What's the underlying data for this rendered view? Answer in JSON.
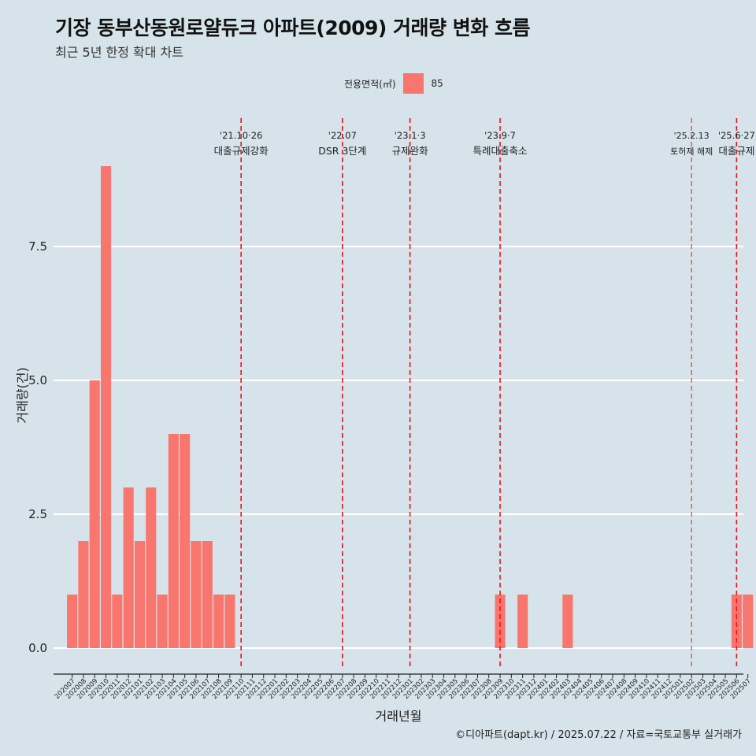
{
  "header": {
    "title": "기장 동부산동원로얄듀크 아파트(2009) 거래량 변화 흐름",
    "subtitle": "최근 5년 한정 확대 차트"
  },
  "legend": {
    "title": "전용면적(㎡)",
    "items": [
      {
        "label": "85",
        "color": "#f8766d"
      }
    ]
  },
  "caption": "©디아파트(dapt.kr) / 2025.07.22 / 자료=국토교통부 실거래가",
  "chart_data": {
    "type": "bar",
    "xlabel": "거래년월",
    "ylabel": "거래량(건)",
    "ylim": [
      -0.35,
      9.4
    ],
    "yticks": [
      0.0,
      2.5,
      5.0,
      7.5
    ],
    "ytick_labels": [
      "0.0",
      "2.5",
      "5.0",
      "7.5"
    ],
    "grid": "horizontal",
    "legend_position": "top",
    "bar_color": "#f8766d",
    "categories": [
      "202007",
      "202008",
      "202009",
      "202010",
      "202011",
      "202012",
      "202101",
      "202102",
      "202103",
      "202104",
      "202105",
      "202106",
      "202107",
      "202108",
      "202109",
      "202110",
      "202111",
      "202112",
      "202201",
      "202202",
      "202203",
      "202204",
      "202205",
      "202206",
      "202207",
      "202208",
      "202209",
      "202210",
      "202211",
      "202212",
      "202301",
      "202302",
      "202303",
      "202304",
      "202305",
      "202306",
      "202307",
      "202308",
      "202309",
      "202310",
      "202311",
      "202312",
      "202401",
      "202402",
      "202403",
      "202404",
      "202405",
      "202406",
      "202407",
      "202408",
      "202409",
      "202410",
      "202411",
      "202412",
      "202501",
      "202502",
      "202503",
      "202504",
      "202505",
      "202506",
      "202507"
    ],
    "series": [
      {
        "values": [
          1,
          2,
          5,
          9,
          1,
          3,
          2,
          3,
          1,
          4,
          4,
          2,
          2,
          1,
          1,
          0,
          0,
          0,
          0,
          0,
          0,
          0,
          0,
          0,
          0,
          0,
          0,
          0,
          0,
          0,
          0,
          0,
          0,
          0,
          0,
          0,
          0,
          0,
          1,
          0,
          1,
          0,
          0,
          0,
          1,
          0,
          0,
          0,
          0,
          0,
          0,
          0,
          0,
          0,
          0,
          0,
          0,
          0,
          0,
          1,
          1
        ]
      }
    ],
    "annotations": [
      {
        "x": "202110",
        "date": "'21.10·26",
        "label": "대출규제강화",
        "style": "bold"
      },
      {
        "x": "202207",
        "date": "'22.07",
        "label": "DSR 3단계",
        "style": "bold"
      },
      {
        "x": "202301",
        "date": "'23.1·3",
        "label": "규제완화",
        "style": "bold"
      },
      {
        "x": "202309",
        "date": "'23.9·7",
        "label": "특례대출축소",
        "style": "bold"
      },
      {
        "x": "202502",
        "date": "'25.2.13",
        "label": "토허제 해제",
        "style": "thin"
      },
      {
        "x": "202506",
        "date": "'25.6·27",
        "label": "대출규제",
        "style": "bold"
      }
    ]
  }
}
